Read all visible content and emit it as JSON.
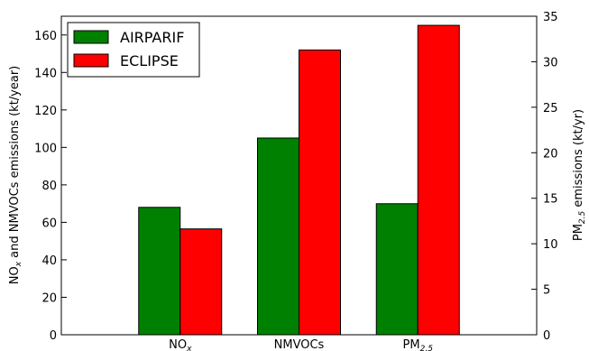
{
  "chart_data": {
    "type": "bar",
    "categories": [
      "NO_x",
      "NMVOCs",
      "PM_2.5"
    ],
    "category_labels": [
      {
        "main": "NO",
        "sub": "x"
      },
      {
        "main": "NMVOCs",
        "sub": ""
      },
      {
        "main": "PM",
        "sub": "2.5"
      }
    ],
    "series": [
      {
        "name": "AIRPARIF",
        "color": "#008000",
        "values": [
          68,
          105,
          14.4
        ],
        "axis": [
          "left",
          "left",
          "right"
        ]
      },
      {
        "name": "ECLIPSE",
        "color": "#ff0000",
        "values": [
          56.5,
          152,
          34
        ],
        "axis": [
          "left",
          "left",
          "right"
        ]
      }
    ],
    "ylabel_left": {
      "main": "NO",
      "sub": "x",
      "rest": " and NMVOCs emissions (kt/year)"
    },
    "ylabel_right": {
      "main": "PM",
      "sub": "2.5",
      "rest": " emissions (kt/yr)"
    },
    "ylim_left": [
      0,
      170
    ],
    "ylim_right": [
      0,
      35
    ],
    "yticks_left": [
      0,
      20,
      40,
      60,
      80,
      100,
      120,
      140,
      160
    ],
    "yticks_right": [
      0,
      5,
      10,
      15,
      20,
      25,
      30,
      35
    ],
    "legend_position": "top-left",
    "grid": false
  }
}
